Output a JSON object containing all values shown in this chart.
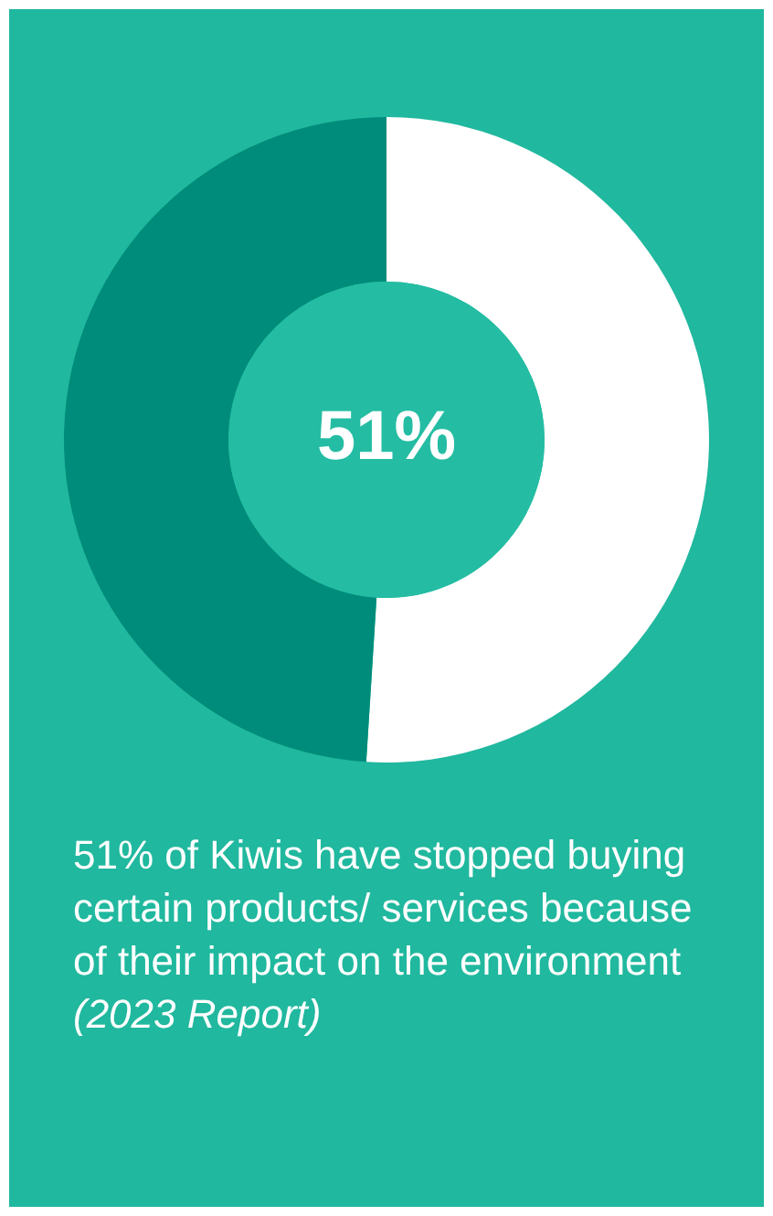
{
  "chart_data": {
    "type": "donut",
    "categories": [
      null,
      null
    ],
    "values": [
      51,
      49
    ],
    "colors": [
      "#ffffff",
      "#008c7a"
    ],
    "legend": false,
    "annotations": [
      "51%",
      "51% of Kiwis have stopped buying certain products/ services because of their impact on the environment",
      "(2023 Report)"
    ]
  }
}
